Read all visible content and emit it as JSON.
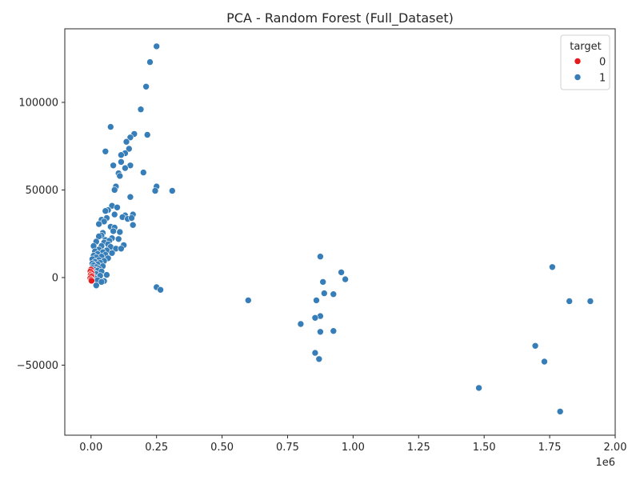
{
  "chart_data": {
    "type": "scatter",
    "title": "PCA - Random Forest (Full_Dataset)",
    "xlabel": "",
    "ylabel": "",
    "x_offset_text": "1e6",
    "xlim": [
      -100000,
      2000000
    ],
    "ylim": [
      -90000,
      142000
    ],
    "x_ticks": [
      0,
      250000,
      500000,
      750000,
      1000000,
      1250000,
      1500000,
      1750000,
      2000000
    ],
    "x_tick_labels": [
      "0.00",
      "0.25",
      "0.50",
      "0.75",
      "1.00",
      "1.25",
      "1.50",
      "1.75",
      "2.00"
    ],
    "y_ticks": [
      -50000,
      0,
      50000,
      100000
    ],
    "y_tick_labels": [
      "−50000",
      "0",
      "50000",
      "100000"
    ],
    "grid": false,
    "legend": {
      "title": "target",
      "placement": "top-right",
      "entries": [
        {
          "label": "0",
          "color": "#e41a1c"
        },
        {
          "label": "1",
          "color": "#377eb8"
        }
      ]
    },
    "series": [
      {
        "name": "1",
        "color": "#377eb8",
        "points": [
          [
            250000,
            132000
          ],
          [
            225000,
            123000
          ],
          [
            210000,
            109000
          ],
          [
            190000,
            96000
          ],
          [
            75000,
            86000
          ],
          [
            165000,
            82000
          ],
          [
            215000,
            81500
          ],
          [
            150000,
            80000
          ],
          [
            135000,
            77500
          ],
          [
            145000,
            73500
          ],
          [
            55000,
            72000
          ],
          [
            130000,
            71000
          ],
          [
            115000,
            70000
          ],
          [
            115000,
            66000
          ],
          [
            85000,
            64000
          ],
          [
            150000,
            64000
          ],
          [
            130000,
            62500
          ],
          [
            200000,
            60000
          ],
          [
            105000,
            59500
          ],
          [
            110000,
            58000
          ],
          [
            95000,
            52000
          ],
          [
            250000,
            52000
          ],
          [
            90000,
            50000
          ],
          [
            245000,
            49500
          ],
          [
            310000,
            49500
          ],
          [
            150000,
            46000
          ],
          [
            80000,
            41000
          ],
          [
            100000,
            40000
          ],
          [
            65000,
            38500
          ],
          [
            55000,
            38000
          ],
          [
            90000,
            36000
          ],
          [
            130000,
            35500
          ],
          [
            160000,
            36000
          ],
          [
            120000,
            34500
          ],
          [
            60000,
            34000
          ],
          [
            140000,
            33500
          ],
          [
            155000,
            34000
          ],
          [
            40000,
            33000
          ],
          [
            50000,
            32000
          ],
          [
            30000,
            30500
          ],
          [
            160000,
            30000
          ],
          [
            75000,
            29000
          ],
          [
            90000,
            28500
          ],
          [
            85000,
            26500
          ],
          [
            110000,
            26000
          ],
          [
            45000,
            25500
          ],
          [
            40000,
            24000
          ],
          [
            30000,
            23500
          ],
          [
            80000,
            22500
          ],
          [
            105000,
            22000
          ],
          [
            55000,
            21500
          ],
          [
            70000,
            21000
          ],
          [
            20000,
            20500
          ],
          [
            50000,
            20000
          ],
          [
            65000,
            19000
          ],
          [
            125000,
            18500
          ],
          [
            10000,
            18000
          ],
          [
            40000,
            18000
          ],
          [
            75000,
            17500
          ],
          [
            95000,
            16500
          ],
          [
            115000,
            16500
          ],
          [
            30000,
            16000
          ],
          [
            60000,
            15500
          ],
          [
            15000,
            15000
          ],
          [
            45000,
            14500
          ],
          [
            80000,
            14000
          ],
          [
            25000,
            13500
          ],
          [
            55000,
            13000
          ],
          [
            10000,
            12500
          ],
          [
            40000,
            12000
          ],
          [
            20000,
            11500
          ],
          [
            65000,
            11000
          ],
          [
            5000,
            10500
          ],
          [
            30000,
            10000
          ],
          [
            50000,
            9500
          ],
          [
            15000,
            9000
          ],
          [
            35000,
            8500
          ],
          [
            5000,
            8000
          ],
          [
            25000,
            7500
          ],
          [
            10000,
            7000
          ],
          [
            45000,
            6500
          ],
          [
            20000,
            6000
          ],
          [
            5000,
            5500
          ],
          [
            30000,
            5000
          ],
          [
            15000,
            4500
          ],
          [
            25000,
            4000
          ],
          [
            40000,
            3500
          ],
          [
            10000,
            3000
          ],
          [
            5000,
            2500
          ],
          [
            20000,
            2000
          ],
          [
            60000,
            1500
          ],
          [
            35000,
            1000
          ],
          [
            10000,
            500
          ],
          [
            15000,
            -500
          ],
          [
            25000,
            -1500
          ],
          [
            50000,
            -2000
          ],
          [
            40000,
            -2500
          ],
          [
            20000,
            -4500
          ],
          [
            250000,
            -5500
          ],
          [
            265000,
            -7000
          ],
          [
            875000,
            12000
          ],
          [
            955000,
            3000
          ],
          [
            970000,
            -1000
          ],
          [
            885000,
            -2500
          ],
          [
            890000,
            -9000
          ],
          [
            925000,
            -9500
          ],
          [
            860000,
            -13000
          ],
          [
            600000,
            -13000
          ],
          [
            875000,
            -22000
          ],
          [
            855000,
            -23000
          ],
          [
            800000,
            -26500
          ],
          [
            925000,
            -30500
          ],
          [
            875000,
            -31000
          ],
          [
            855000,
            -43000
          ],
          [
            870000,
            -46500
          ],
          [
            1480000,
            -63000
          ],
          [
            1760000,
            6000
          ],
          [
            1825000,
            -13500
          ],
          [
            1905000,
            -13500
          ],
          [
            1695000,
            -39000
          ],
          [
            1730000,
            -48000
          ],
          [
            1790000,
            -76500
          ]
        ]
      },
      {
        "name": "0",
        "color": "#e41a1c",
        "points": [
          [
            0,
            4500
          ],
          [
            -2000,
            3500
          ],
          [
            2000,
            2500
          ],
          [
            -1000,
            1500
          ],
          [
            3000,
            1000
          ],
          [
            1000,
            500
          ],
          [
            -3000,
            -500
          ],
          [
            0,
            -1200
          ],
          [
            2000,
            -1800
          ]
        ]
      }
    ]
  }
}
